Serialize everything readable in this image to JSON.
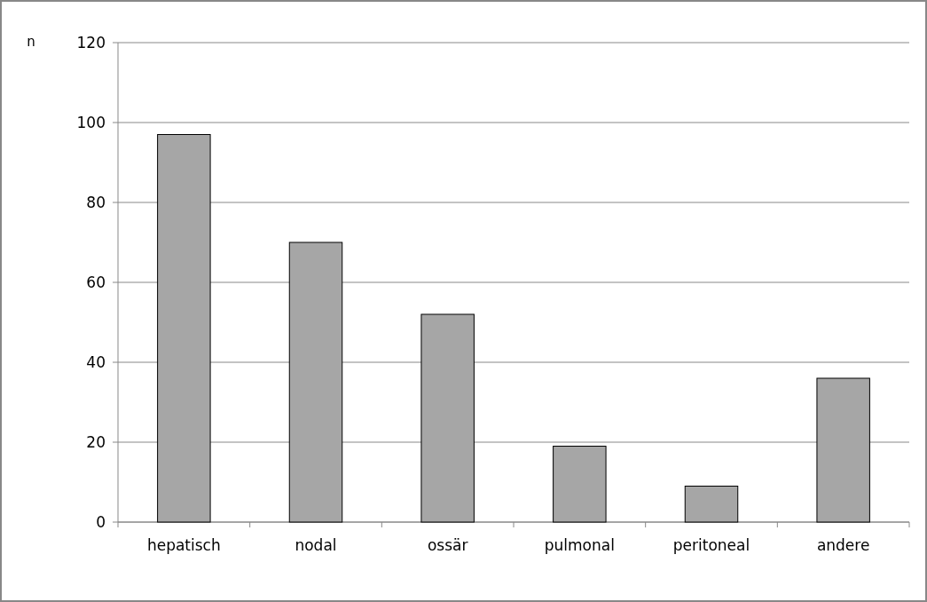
{
  "chart_data": {
    "type": "bar",
    "ylabel": "n",
    "categories": [
      "hepatisch",
      "nodal",
      "ossär",
      "pulmonal",
      "peritoneal",
      "andere"
    ],
    "values": [
      97,
      70,
      52,
      19,
      9,
      36
    ],
    "color": "#a6a6a6",
    "ylim": [
      0,
      120
    ],
    "yticks": [
      0,
      20,
      40,
      60,
      80,
      100,
      120
    ],
    "grid": "y"
  }
}
